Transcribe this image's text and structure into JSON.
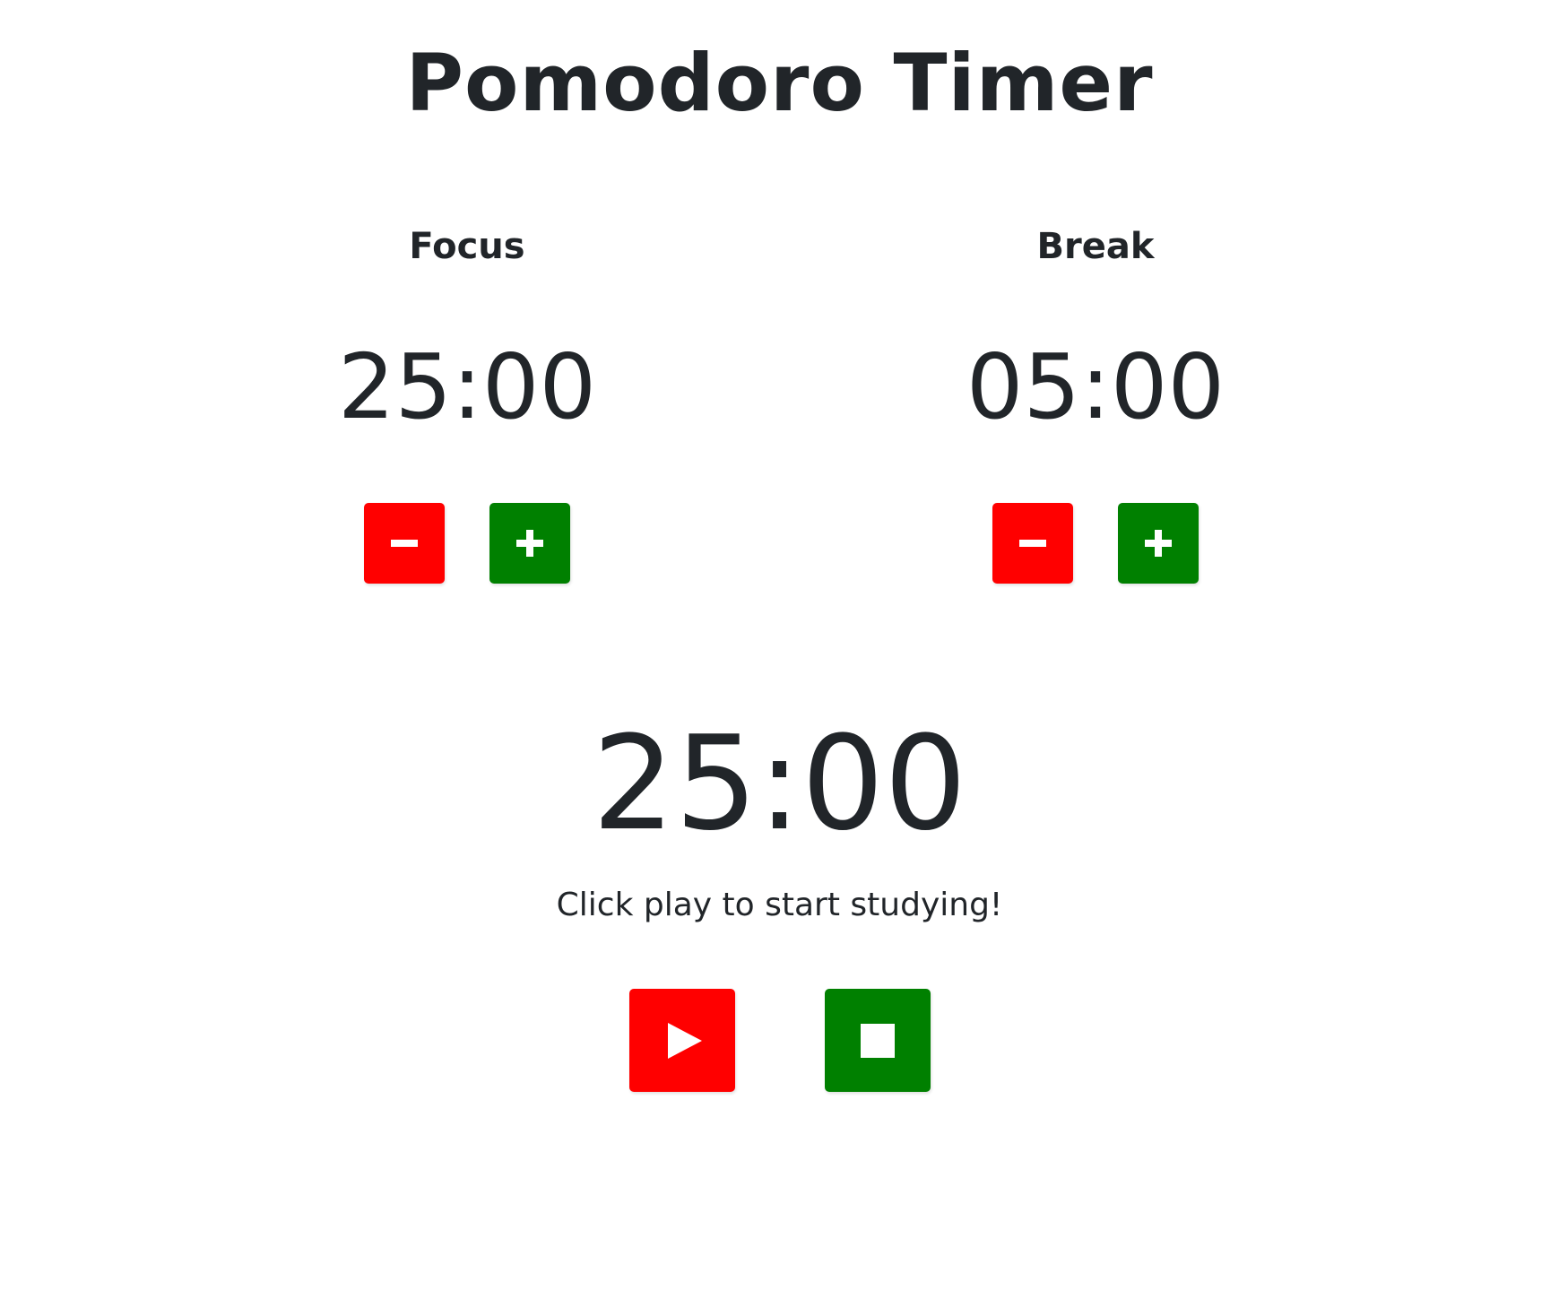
{
  "title": "Pomodoro Timer",
  "focus": {
    "label": "Focus",
    "time": "25:00",
    "decrement_icon": "minus-icon",
    "increment_icon": "plus-icon"
  },
  "break": {
    "label": "Break",
    "time": "05:00",
    "decrement_icon": "minus-icon",
    "increment_icon": "plus-icon"
  },
  "timer": {
    "time": "25:00",
    "status": "Click play to start studying!",
    "play_icon": "play-icon",
    "stop_icon": "stop-icon"
  },
  "colors": {
    "red": "#ff0000",
    "green": "#008000",
    "text": "#212529"
  }
}
